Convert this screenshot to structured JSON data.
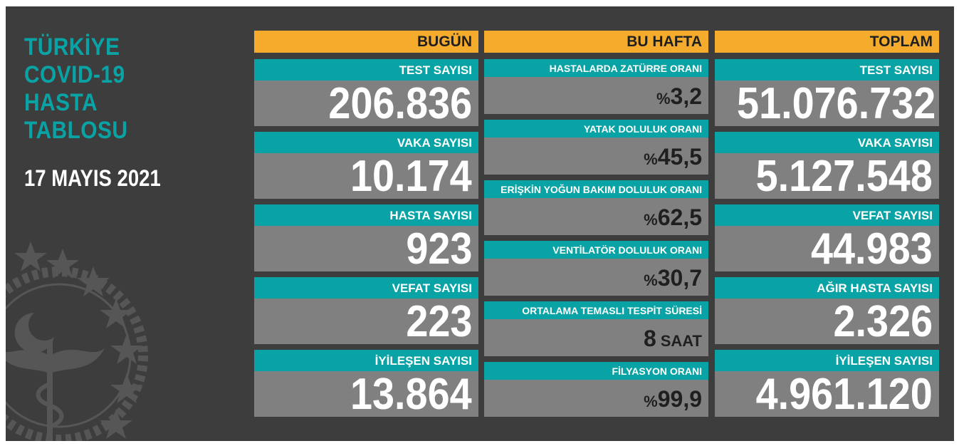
{
  "title_lines": [
    "TÜRKİYE",
    "COVID-19",
    "HASTA",
    "TABLOSU"
  ],
  "date": "17 MAYIS 2021",
  "today": {
    "header": "BUGÜN",
    "items": [
      {
        "label": "TEST SAYISI",
        "value": "206.836"
      },
      {
        "label": "VAKA SAYISI",
        "value": "10.174"
      },
      {
        "label": "HASTA SAYISI",
        "value": "923"
      },
      {
        "label": "VEFAT SAYISI",
        "value": "223"
      },
      {
        "label": "İYİLEŞEN SAYISI",
        "value": "13.864"
      }
    ]
  },
  "week": {
    "header": "BU HAFTA",
    "items": [
      {
        "label": "HASTALARDA ZATÜRRE ORANI",
        "prefix": "%",
        "value": "3,2",
        "suffix": ""
      },
      {
        "label": "YATAK DOLULUK ORANI",
        "prefix": "%",
        "value": "45,5",
        "suffix": ""
      },
      {
        "label": "ERİŞKİN YOĞUN BAKIM DOLULUK ORANI",
        "prefix": "%",
        "value": "62,5",
        "suffix": ""
      },
      {
        "label": "VENTİLATÖR DOLULUK ORANI",
        "prefix": "%",
        "value": "30,7",
        "suffix": ""
      },
      {
        "label": "ORTALAMA TEMASLI TESPİT SÜRESİ",
        "prefix": "",
        "value": "8",
        "suffix": "SAAT"
      },
      {
        "label": "FİLYASYON ORANI",
        "prefix": "%",
        "value": "99,9",
        "suffix": ""
      }
    ]
  },
  "total": {
    "header": "TOPLAM",
    "items": [
      {
        "label": "TEST SAYISI",
        "value": "51.076.732"
      },
      {
        "label": "VAKA SAYISI",
        "value": "5.127.548"
      },
      {
        "label": "VEFAT SAYISI",
        "value": "44.983"
      },
      {
        "label": "AĞIR HASTA SAYISI",
        "value": "2.326"
      },
      {
        "label": "İYİLEŞEN SAYISI",
        "value": "4.961.120"
      }
    ]
  },
  "colors": {
    "background": "#3d3d3d",
    "header": "#f5ac2c",
    "label": "#0aa3a5",
    "value_box": "#808080",
    "title": "#0aa3a5"
  },
  "icons": {
    "emblem": "ministry-of-health-emblem"
  }
}
